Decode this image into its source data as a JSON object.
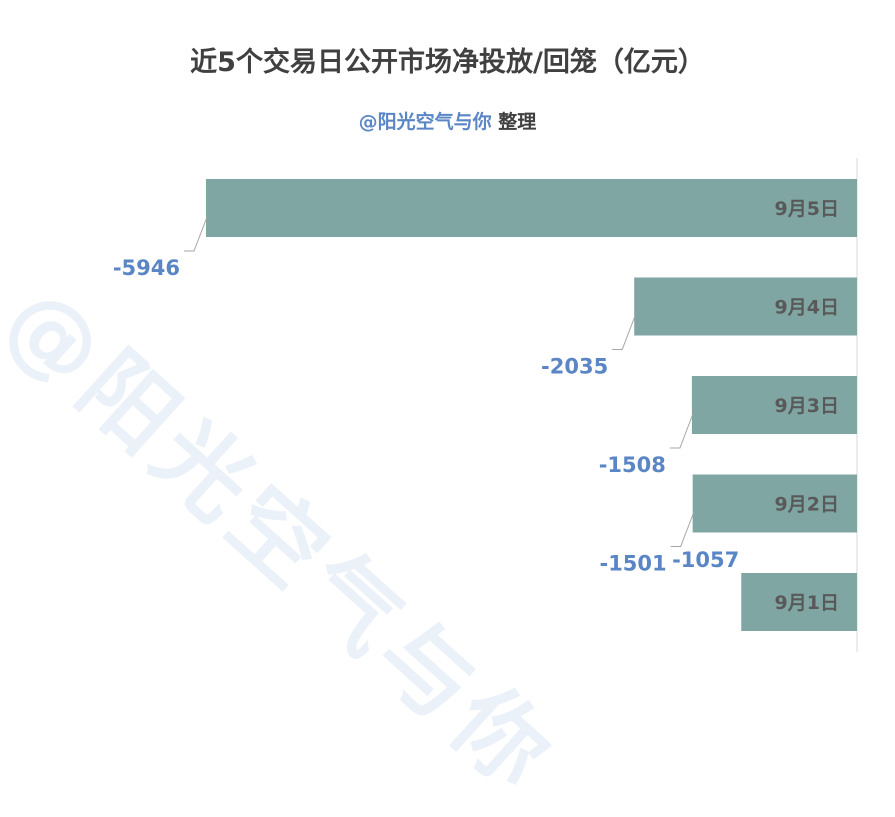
{
  "title": "近5个交易日公开市场净投放/回笼（亿元）",
  "subtitle": {
    "handle": "@阳光空气与你",
    "suffix": " 整理"
  },
  "watermark": "@阳光空气与你",
  "colors": {
    "bar": "#7fa6a3",
    "value_label": "#5b86c5",
    "category_label": "#595959",
    "axis": "#d9d9d9",
    "leader": "#a6a6a6"
  },
  "chart_data": {
    "type": "bar",
    "orientation": "horizontal",
    "categories": [
      "9月5日",
      "9月4日",
      "9月3日",
      "9月2日",
      "9月1日"
    ],
    "values": [
      -5946,
      -2035,
      -1508,
      -1501,
      -1057
    ],
    "xlim": [
      -5946,
      0
    ],
    "category_label_position": "inside-right",
    "data_labels": true
  }
}
